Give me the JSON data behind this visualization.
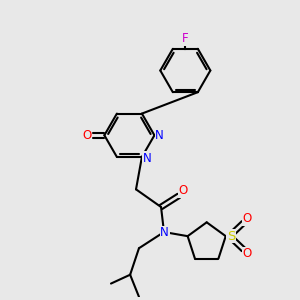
{
  "background_color": "#e8e8e8",
  "bond_color": "#000000",
  "nitrogen_color": "#0000ff",
  "oxygen_color": "#ff0000",
  "sulfur_color": "#cccc00",
  "fluorine_color": "#cc00cc",
  "line_width": 1.5,
  "font_size": 8.5,
  "figsize": [
    3.0,
    3.0
  ],
  "dpi": 100,
  "xlim": [
    0,
    10
  ],
  "ylim": [
    0,
    10
  ]
}
